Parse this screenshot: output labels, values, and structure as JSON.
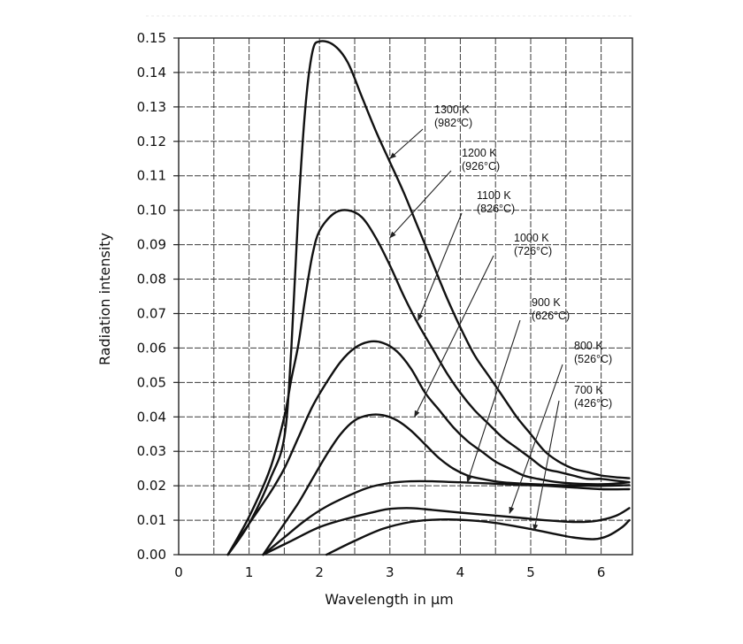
{
  "chart_data": {
    "type": "line",
    "title": "",
    "xlabel": "Wavelength in µm",
    "ylabel": "Radiation intensity",
    "xlim": [
      0,
      6.4
    ],
    "ylim": [
      0,
      0.15
    ],
    "x_ticks": [
      0,
      1,
      2,
      3,
      4,
      5,
      6
    ],
    "x_tick_labels": [
      "0",
      "1",
      "2",
      "3",
      "4",
      "5",
      "6"
    ],
    "y_ticks": [
      0,
      0.01,
      0.02,
      0.03,
      0.04,
      0.05,
      0.06,
      0.07,
      0.08,
      0.09,
      0.1,
      0.11,
      0.12,
      0.13,
      0.14,
      0.15
    ],
    "y_tick_labels": [
      "0.00",
      "0.01",
      "0.02",
      "0.03",
      "0.04",
      "0.05",
      "0.06",
      "0.07",
      "0.08",
      "0.09",
      "0.10",
      "0.11",
      "0.12",
      "0.13",
      "0.14",
      "0.15"
    ],
    "grid": true,
    "series": [
      {
        "name": "1300 K (982°C)",
        "points": [
          [
            0.7,
            0
          ],
          [
            1.0,
            0.009
          ],
          [
            1.3,
            0.022
          ],
          [
            1.5,
            0.034
          ],
          [
            1.6,
            0.06
          ],
          [
            1.7,
            0.1
          ],
          [
            1.8,
            0.13
          ],
          [
            1.9,
            0.146
          ],
          [
            2.0,
            0.149
          ],
          [
            2.2,
            0.148
          ],
          [
            2.4,
            0.143
          ],
          [
            2.6,
            0.133
          ],
          [
            2.8,
            0.123
          ],
          [
            3.0,
            0.114
          ],
          [
            3.2,
            0.105
          ],
          [
            3.4,
            0.095
          ],
          [
            3.6,
            0.085
          ],
          [
            3.8,
            0.075
          ],
          [
            4.0,
            0.066
          ],
          [
            4.2,
            0.058
          ],
          [
            4.4,
            0.052
          ],
          [
            4.6,
            0.046
          ],
          [
            4.8,
            0.04
          ],
          [
            5.0,
            0.035
          ],
          [
            5.2,
            0.03
          ],
          [
            5.4,
            0.027
          ],
          [
            5.6,
            0.025
          ],
          [
            5.8,
            0.024
          ],
          [
            6.0,
            0.023
          ],
          [
            6.2,
            0.0225
          ],
          [
            6.4,
            0.0222
          ]
        ]
      },
      {
        "name": "1200 K (926°C)",
        "points": [
          [
            0.7,
            0
          ],
          [
            1.0,
            0.011
          ],
          [
            1.3,
            0.025
          ],
          [
            1.5,
            0.04
          ],
          [
            1.6,
            0.051
          ],
          [
            1.7,
            0.061
          ],
          [
            1.8,
            0.075
          ],
          [
            1.9,
            0.087
          ],
          [
            2.0,
            0.094
          ],
          [
            2.2,
            0.099
          ],
          [
            2.4,
            0.1
          ],
          [
            2.6,
            0.098
          ],
          [
            2.8,
            0.092
          ],
          [
            3.0,
            0.084
          ],
          [
            3.2,
            0.075
          ],
          [
            3.4,
            0.067
          ],
          [
            3.6,
            0.06
          ],
          [
            3.8,
            0.053
          ],
          [
            4.0,
            0.047
          ],
          [
            4.2,
            0.042
          ],
          [
            4.4,
            0.038
          ],
          [
            4.6,
            0.034
          ],
          [
            4.8,
            0.031
          ],
          [
            5.0,
            0.028
          ],
          [
            5.2,
            0.025
          ],
          [
            5.4,
            0.024
          ],
          [
            5.6,
            0.023
          ],
          [
            5.8,
            0.022
          ],
          [
            6.0,
            0.022
          ],
          [
            6.2,
            0.0215
          ],
          [
            6.4,
            0.021
          ]
        ]
      },
      {
        "name": "1100 K (826°C)",
        "points": [
          [
            0.7,
            0
          ],
          [
            1.0,
            0.009
          ],
          [
            1.3,
            0.018
          ],
          [
            1.5,
            0.025
          ],
          [
            1.7,
            0.034
          ],
          [
            1.9,
            0.043
          ],
          [
            2.1,
            0.05
          ],
          [
            2.3,
            0.056
          ],
          [
            2.5,
            0.06
          ],
          [
            2.7,
            0.0618
          ],
          [
            2.9,
            0.0615
          ],
          [
            3.1,
            0.059
          ],
          [
            3.3,
            0.054
          ],
          [
            3.5,
            0.047
          ],
          [
            3.7,
            0.042
          ],
          [
            3.9,
            0.037
          ],
          [
            4.1,
            0.033
          ],
          [
            4.3,
            0.03
          ],
          [
            4.5,
            0.027
          ],
          [
            4.7,
            0.025
          ],
          [
            4.9,
            0.023
          ],
          [
            5.1,
            0.022
          ],
          [
            5.4,
            0.021
          ],
          [
            5.8,
            0.0205
          ],
          [
            6.1,
            0.0205
          ],
          [
            6.4,
            0.021
          ]
        ]
      },
      {
        "name": "1000 K (726°C)",
        "points": [
          [
            1.2,
            0
          ],
          [
            1.5,
            0.009
          ],
          [
            1.7,
            0.015
          ],
          [
            1.9,
            0.022
          ],
          [
            2.1,
            0.029
          ],
          [
            2.3,
            0.035
          ],
          [
            2.5,
            0.039
          ],
          [
            2.7,
            0.0405
          ],
          [
            2.9,
            0.0405
          ],
          [
            3.1,
            0.039
          ],
          [
            3.3,
            0.036
          ],
          [
            3.5,
            0.032
          ],
          [
            3.7,
            0.028
          ],
          [
            3.9,
            0.025
          ],
          [
            4.1,
            0.023
          ],
          [
            4.3,
            0.022
          ],
          [
            4.6,
            0.021
          ],
          [
            5.0,
            0.0205
          ],
          [
            5.4,
            0.0202
          ],
          [
            5.8,
            0.02
          ],
          [
            6.1,
            0.02
          ],
          [
            6.4,
            0.0202
          ]
        ]
      },
      {
        "name": "900 K (626°C)",
        "points": [
          [
            1.2,
            0
          ],
          [
            1.5,
            0.005
          ],
          [
            1.8,
            0.01
          ],
          [
            2.1,
            0.014
          ],
          [
            2.4,
            0.017
          ],
          [
            2.7,
            0.0195
          ],
          [
            3.0,
            0.0208
          ],
          [
            3.3,
            0.0213
          ],
          [
            3.6,
            0.0213
          ],
          [
            4.0,
            0.021
          ],
          [
            4.4,
            0.0207
          ],
          [
            4.8,
            0.0203
          ],
          [
            5.2,
            0.02
          ],
          [
            5.6,
            0.0195
          ],
          [
            6.0,
            0.019
          ],
          [
            6.4,
            0.019
          ]
        ]
      },
      {
        "name": "800 K (526°C)",
        "points": [
          [
            1.2,
            0
          ],
          [
            1.6,
            0.004
          ],
          [
            2.0,
            0.008
          ],
          [
            2.4,
            0.0105
          ],
          [
            2.8,
            0.0125
          ],
          [
            3.0,
            0.0133
          ],
          [
            3.3,
            0.0135
          ],
          [
            3.6,
            0.013
          ],
          [
            4.0,
            0.0122
          ],
          [
            4.4,
            0.0115
          ],
          [
            4.8,
            0.0108
          ],
          [
            5.2,
            0.01
          ],
          [
            5.6,
            0.0095
          ],
          [
            5.9,
            0.0097
          ],
          [
            6.2,
            0.0112
          ],
          [
            6.4,
            0.0135
          ]
        ]
      },
      {
        "name": "700 K (426°C)",
        "points": [
          [
            2.1,
            0
          ],
          [
            2.5,
            0.004
          ],
          [
            2.9,
            0.0075
          ],
          [
            3.3,
            0.0095
          ],
          [
            3.7,
            0.0102
          ],
          [
            4.1,
            0.01
          ],
          [
            4.5,
            0.0092
          ],
          [
            4.9,
            0.0078
          ],
          [
            5.3,
            0.0062
          ],
          [
            5.6,
            0.005
          ],
          [
            5.9,
            0.0045
          ],
          [
            6.1,
            0.0055
          ],
          [
            6.3,
            0.008
          ],
          [
            6.4,
            0.01
          ]
        ]
      }
    ],
    "annotations": [
      {
        "line1": "1300 K",
        "line2": "(982°C)",
        "pointer": [
          3.0,
          0.115
        ]
      },
      {
        "line1": "1200 K",
        "line2": "(926°C)",
        "pointer": [
          3.0,
          0.092
        ]
      },
      {
        "line1": "1100 K",
        "line2": "(826°C)",
        "pointer": [
          3.4,
          0.068
        ]
      },
      {
        "line1": "1000 K",
        "line2": "(726°C)",
        "pointer": [
          3.35,
          0.04
        ]
      },
      {
        "line1": "900 K",
        "line2": "(626°C)",
        "pointer": [
          4.1,
          0.021
        ]
      },
      {
        "line1": "800 K",
        "line2": "(526°C)",
        "pointer": [
          4.7,
          0.012
        ]
      },
      {
        "line1": "700 K",
        "line2": "(426°C)",
        "pointer": [
          5.05,
          0.007
        ]
      }
    ]
  }
}
